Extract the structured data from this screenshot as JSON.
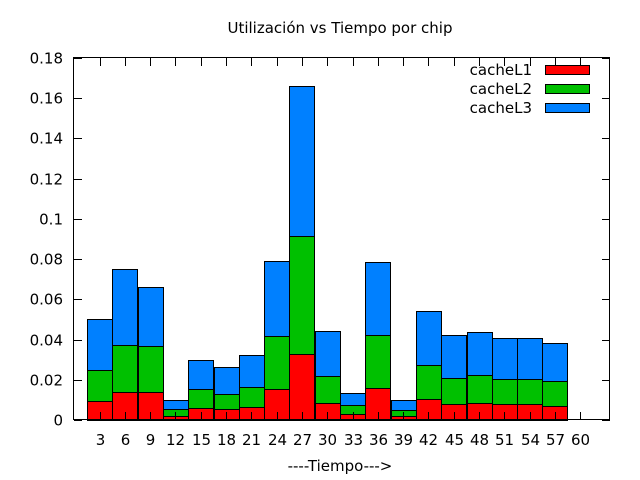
{
  "chart_data": {
    "type": "bar",
    "stacked": true,
    "title": "Utilización vs Tiempo por chip",
    "xlabel": "----Tiempo--->",
    "ylabel": "",
    "categories": [
      "3",
      "6",
      "9",
      "12",
      "15",
      "18",
      "21",
      "24",
      "27",
      "30",
      "33",
      "36",
      "39",
      "42",
      "45",
      "48",
      "51",
      "54",
      "57",
      "60"
    ],
    "ylim": [
      0,
      0.18
    ],
    "yticks": [
      "0",
      "0.02",
      "0.04",
      "0.06",
      "0.08",
      "0.1",
      "0.12",
      "0.14",
      "0.16",
      "0.18"
    ],
    "grid": false,
    "legend_position": "top-right",
    "series": [
      {
        "name": "cacheL1",
        "color": "#ff0000",
        "values": [
          0.0095,
          0.014,
          0.014,
          0.002,
          0.006,
          0.0055,
          0.0065,
          0.0155,
          0.033,
          0.0085,
          0.003,
          0.016,
          0.002,
          0.0105,
          0.008,
          0.0085,
          0.008,
          0.008,
          0.007,
          0
        ]
      },
      {
        "name": "cacheL2",
        "color": "#00c000",
        "values": [
          0.0155,
          0.0235,
          0.023,
          0.0035,
          0.0095,
          0.0075,
          0.01,
          0.0265,
          0.0585,
          0.0135,
          0.0045,
          0.0265,
          0.003,
          0.017,
          0.013,
          0.014,
          0.0125,
          0.0125,
          0.0125,
          0
        ]
      },
      {
        "name": "cacheL3",
        "color": "#0080ff",
        "values": [
          0.025,
          0.0375,
          0.029,
          0.0045,
          0.0145,
          0.0135,
          0.016,
          0.037,
          0.0745,
          0.0225,
          0.006,
          0.036,
          0.005,
          0.0265,
          0.0215,
          0.0215,
          0.0205,
          0.0205,
          0.019,
          0
        ]
      }
    ]
  }
}
